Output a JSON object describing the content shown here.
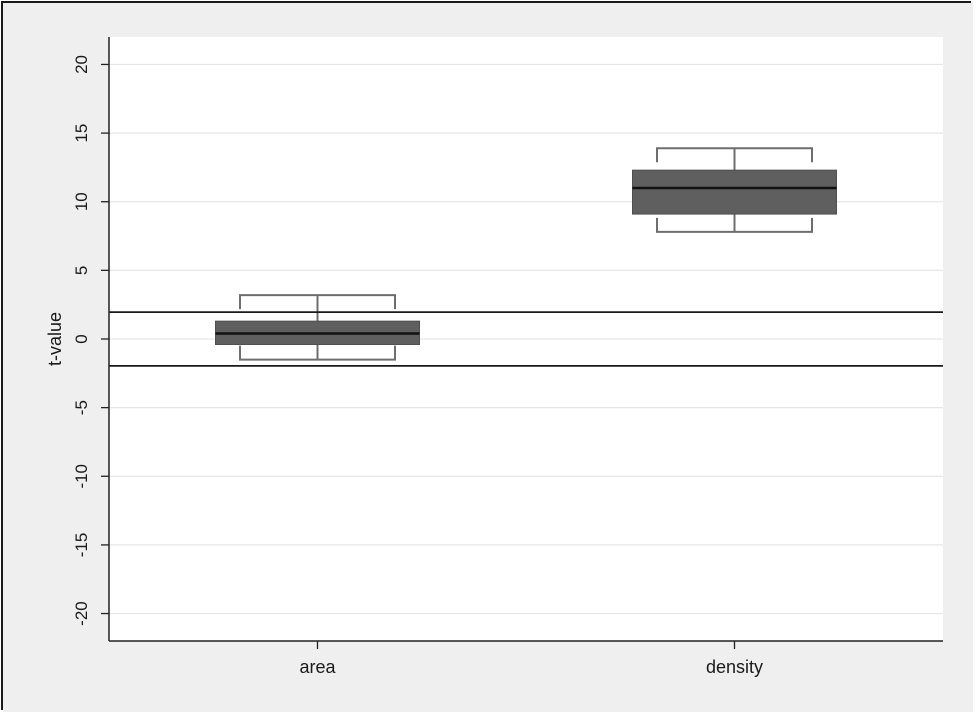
{
  "chart_data": {
    "type": "box",
    "title": "",
    "xlabel": "",
    "ylabel": "t-value",
    "ylim": [
      -22,
      22
    ],
    "yticks": [
      20,
      15,
      10,
      5,
      0,
      -5,
      -10,
      -15,
      -20
    ],
    "ytick_labels": [
      "20",
      "15",
      "10",
      "5",
      "0",
      "-5",
      "-10",
      "-15",
      "-20"
    ],
    "grid": true,
    "categories": [
      "area",
      "density"
    ],
    "boxes": [
      {
        "category": "area",
        "whisker_low": -1.5,
        "q1": -0.4,
        "median": 0.4,
        "q3": 1.3,
        "whisker_high": 3.2
      },
      {
        "category": "density",
        "whisker_low": 7.8,
        "q1": 9.1,
        "median": 11.0,
        "q3": 12.3,
        "whisker_high": 13.9
      }
    ],
    "reference_lines": [
      1.96,
      -1.96
    ],
    "colors": {
      "plot_background": "#ffffff",
      "outer_background": "#efefef",
      "box_fill": "#5f5f5f",
      "whisker": "#6e6e6e",
      "median": "#111111",
      "grid": "#e6e6e6",
      "reference_line": "#1a1a1a",
      "axis": "#222222"
    }
  }
}
